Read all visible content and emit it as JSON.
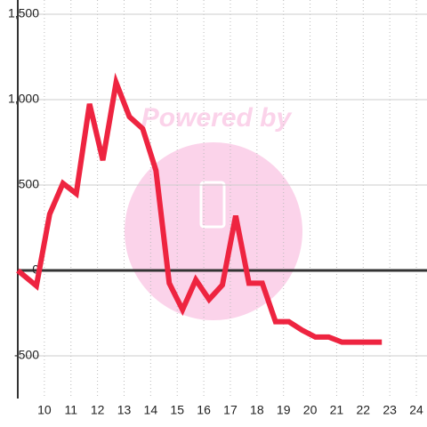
{
  "chart_data": {
    "type": "line",
    "watermark": "Powered by",
    "x": [
      9,
      9.7,
      10.2,
      10.7,
      11.2,
      11.7,
      12.2,
      12.7,
      13.2,
      13.7,
      14.2,
      14.7,
      15.2,
      15.7,
      16.2,
      16.7,
      17.2,
      17.7,
      18.2,
      18.7,
      19.2,
      19.7,
      20.2,
      20.7,
      21.2,
      21.7,
      22.2,
      22.7
    ],
    "series": [
      {
        "color": "#ee2440",
        "values": [
          0,
          -90,
          330,
          510,
          450,
          975,
          645,
          1100,
          900,
          830,
          585,
          -75,
          -230,
          -55,
          -170,
          -85,
          320,
          -75,
          -75,
          -300,
          -300,
          -350,
          -390,
          -390,
          -420,
          -420,
          -420,
          -420
        ]
      }
    ],
    "xlim": [
      9,
      24.4
    ],
    "xticks": [
      10,
      11,
      12,
      13,
      14,
      15,
      16,
      17,
      18,
      19,
      20,
      21,
      22,
      23,
      24
    ],
    "ylim": [
      -750,
      1500
    ],
    "yticks": [
      {
        "value": 1500,
        "label": "1,500"
      },
      {
        "value": 1000,
        "label": "1,000"
      },
      500,
      0,
      -500
    ],
    "grid": true
  }
}
